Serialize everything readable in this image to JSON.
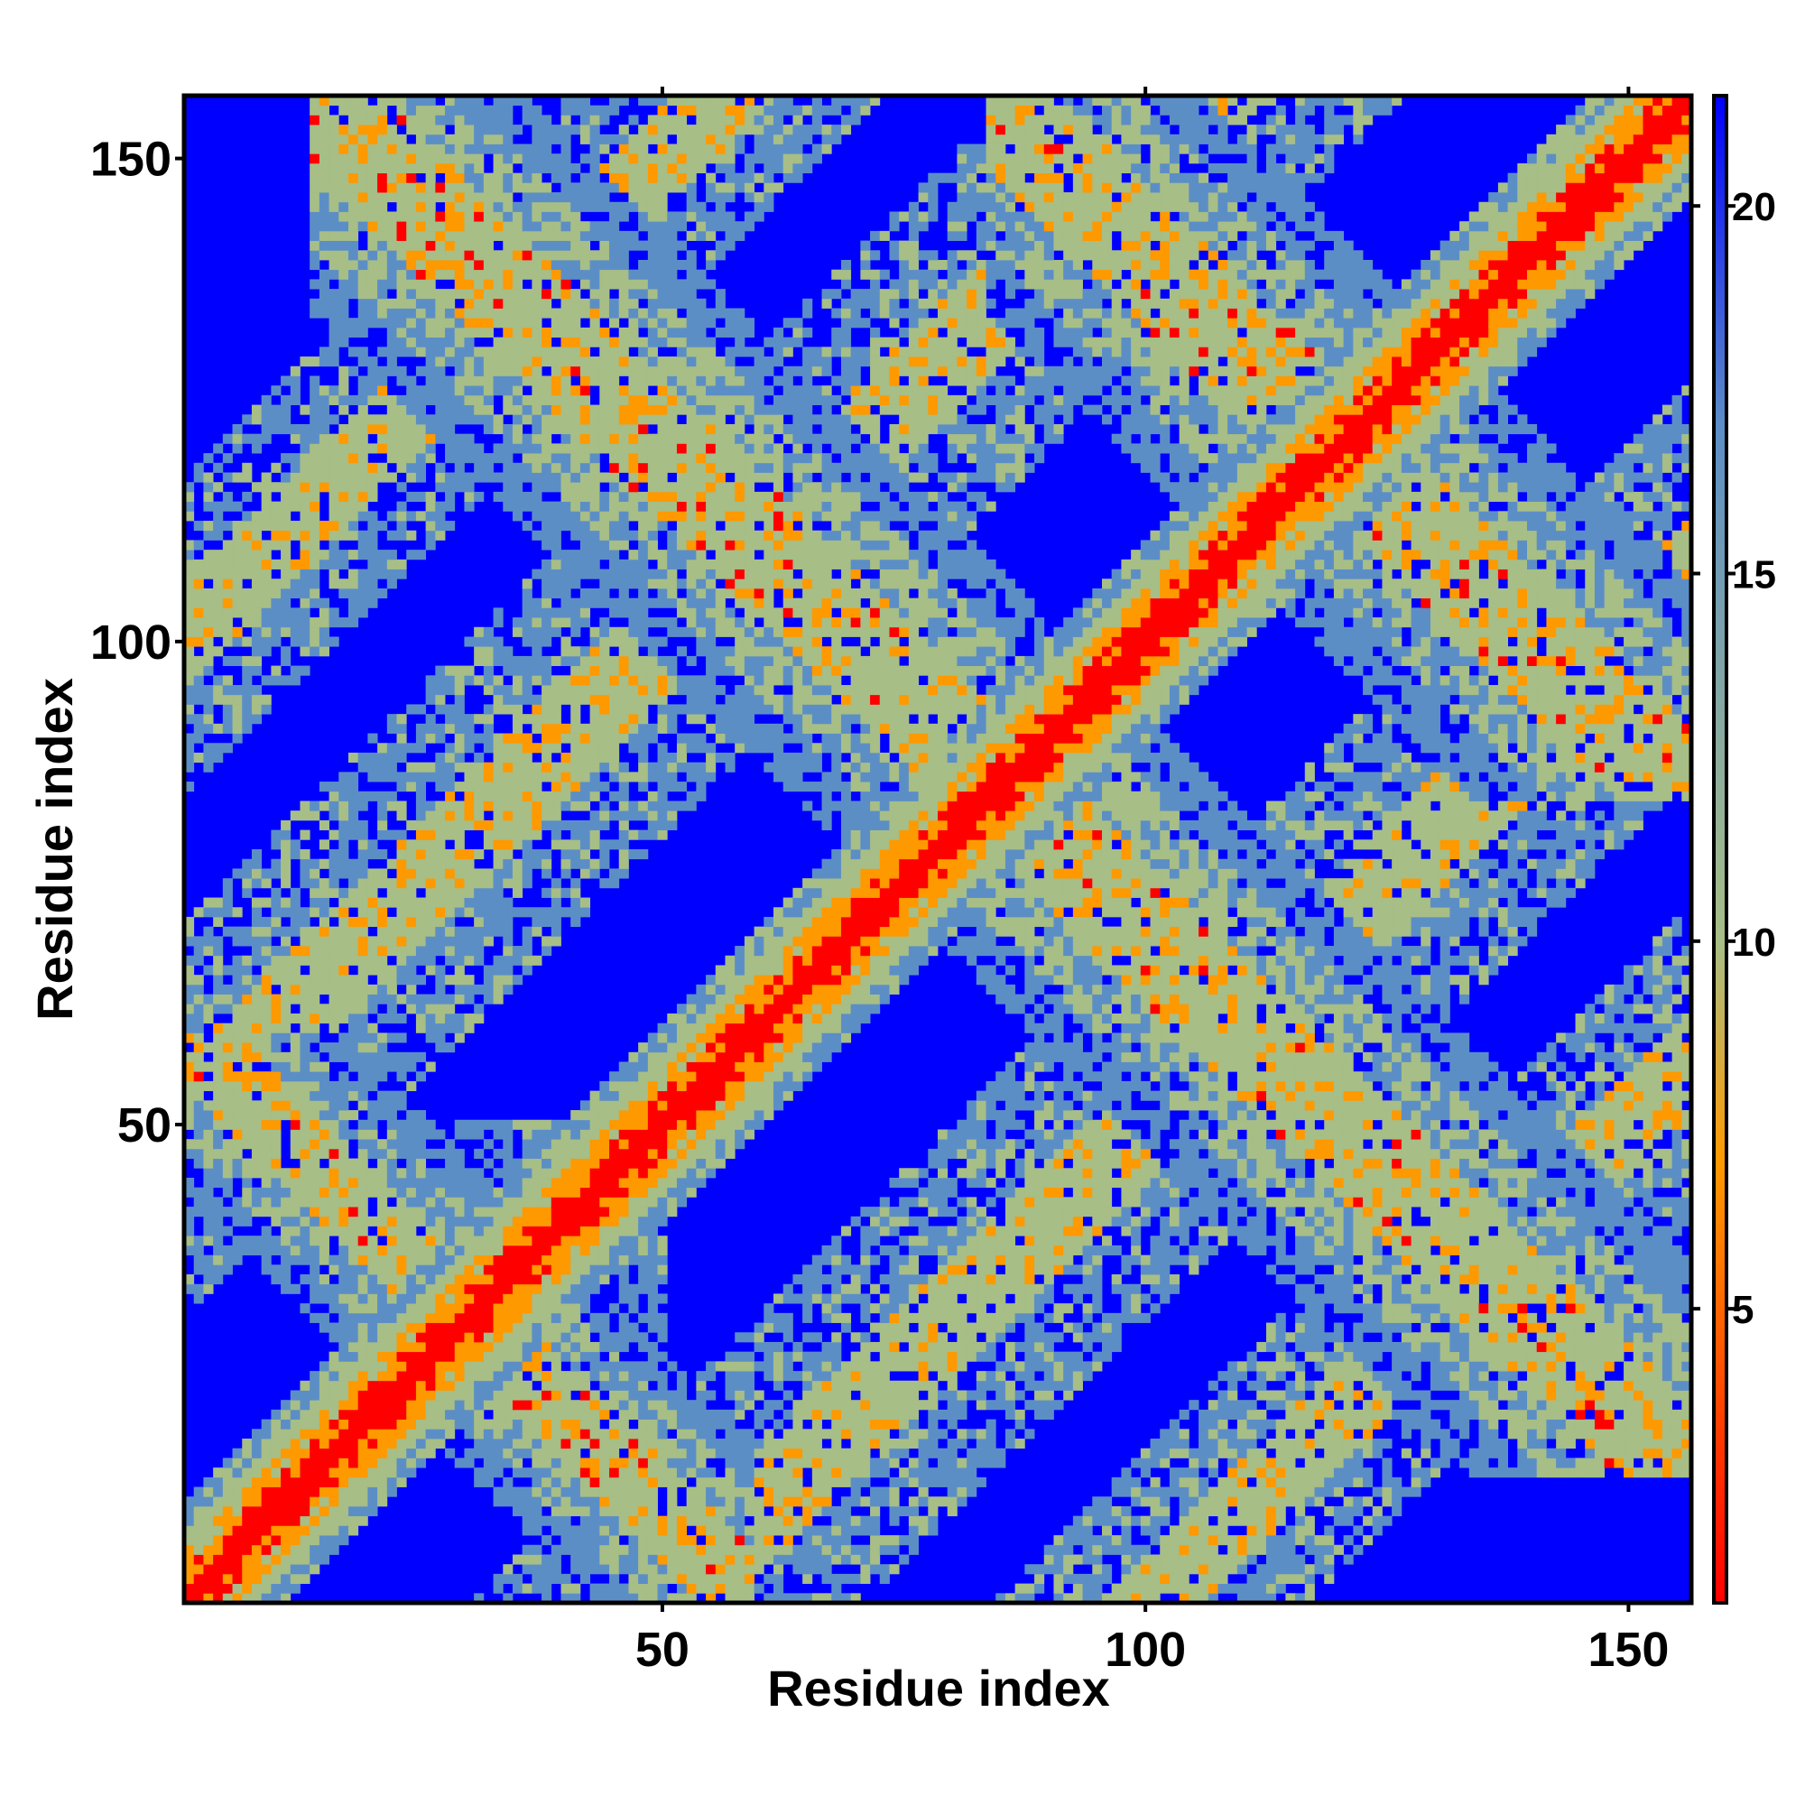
{
  "chart_data": {
    "type": "heatmap",
    "title": "",
    "xlabel": "Residue index",
    "ylabel": "Residue index",
    "xlim": [
      1,
      156
    ],
    "ylim": [
      1,
      156
    ],
    "x_ticks": [
      50,
      100,
      150
    ],
    "y_ticks": [
      50,
      100,
      150
    ],
    "x_tick_labels": [
      "50",
      "100",
      "150"
    ],
    "y_tick_labels": [
      "50",
      "100",
      "150"
    ],
    "colorbar": {
      "range": [
        1,
        21.5
      ],
      "ticks": [
        5,
        10,
        15,
        20
      ],
      "tick_labels": [
        "5",
        "10",
        "15",
        "20"
      ],
      "colors": [
        "#ff0000",
        "#ff9900",
        "#a7be86",
        "#5c8ec6",
        "#0000ff"
      ],
      "stops": [
        1,
        7,
        10,
        17,
        21.5
      ]
    },
    "colors": {
      "background": "#0000ff",
      "diagonal": "#ff0000",
      "near": "#ff9900",
      "mid": "#a7be86",
      "far": "#5c8ec6"
    },
    "structure": {
      "n_residues": 156,
      "diagonal_band_halfwidth_residues": 10,
      "antiparallel_bands": [
        {
          "sum": 100,
          "range": [
            1,
            50
          ],
          "halfwidth": 11
        },
        {
          "sum": 170,
          "range": [
            14,
            156
          ],
          "halfwidth": 11
        },
        {
          "sum": 240,
          "range": [
            84,
            156
          ],
          "halfwidth": 11
        },
        {
          "sum": 60,
          "range": [
            1,
            59
          ],
          "halfwidth": 8
        }
      ],
      "parallel_offbands": [
        {
          "offset": -50,
          "range": [
            1,
            156
          ],
          "halfwidth": 10
        },
        {
          "offset": 50,
          "range": [
            1,
            156
          ],
          "halfwidth": 10
        },
        {
          "offset": 100,
          "range": [
            1,
            156
          ],
          "halfwidth": 8
        },
        {
          "offset": -100,
          "range": [
            1,
            156
          ],
          "halfwidth": 8
        }
      ]
    }
  }
}
